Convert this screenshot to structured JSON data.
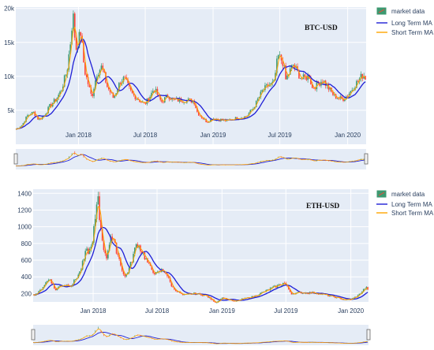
{
  "colors": {
    "plot_bg": "#e5ecf6",
    "grid": "#ffffff",
    "increasing": "#3d9970",
    "decreasing": "#ff4136",
    "long_ma": "#1f1fd6",
    "short_ma": "#ffa500",
    "range_bg": "#e5ecf6"
  },
  "legend": {
    "market": "market data",
    "long": "Long Term MA",
    "short": "Short Term MA"
  },
  "chart_data": [
    {
      "type": "candlestick",
      "title": "BTC-USD",
      "ylim": [
        0,
        20200
      ],
      "yticks": [
        5000,
        10000,
        15000,
        20000
      ],
      "ytick_labels": [
        "5k",
        "10k",
        "15k",
        "20k"
      ],
      "x_range": [
        "2017-07-15",
        "2020-02-20"
      ],
      "xticks": [
        "2018-01-01",
        "2018-07-01",
        "2019-01-01",
        "2019-07-01",
        "2020-01-01"
      ],
      "xtick_labels": [
        "Jan 2018",
        "Jul 2018",
        "Jan 2019",
        "Jul 2019",
        "Jan 2020"
      ],
      "price_series": [
        [
          "2017-07-15",
          2200
        ],
        [
          "2017-08-01",
          2800
        ],
        [
          "2017-08-15",
          4200
        ],
        [
          "2017-09-01",
          4700
        ],
        [
          "2017-09-15",
          3600
        ],
        [
          "2017-10-01",
          4300
        ],
        [
          "2017-10-15",
          5600
        ],
        [
          "2017-11-01",
          6600
        ],
        [
          "2017-11-15",
          7900
        ],
        [
          "2017-12-01",
          10900
        ],
        [
          "2017-12-10",
          15000
        ],
        [
          "2017-12-17",
          19300
        ],
        [
          "2017-12-25",
          14000
        ],
        [
          "2018-01-07",
          16500
        ],
        [
          "2018-01-17",
          11000
        ],
        [
          "2018-02-06",
          6900
        ],
        [
          "2018-02-20",
          10500
        ],
        [
          "2018-03-05",
          11400
        ],
        [
          "2018-03-20",
          8500
        ],
        [
          "2018-04-06",
          6800
        ],
        [
          "2018-04-25",
          9300
        ],
        [
          "2018-05-05",
          9700
        ],
        [
          "2018-05-25",
          7500
        ],
        [
          "2018-06-15",
          6500
        ],
        [
          "2018-06-29",
          5900
        ],
        [
          "2018-07-10",
          6700
        ],
        [
          "2018-07-25",
          8200
        ],
        [
          "2018-08-14",
          6200
        ],
        [
          "2018-09-01",
          7200
        ],
        [
          "2018-09-15",
          6500
        ],
        [
          "2018-10-15",
          6500
        ],
        [
          "2018-11-10",
          6400
        ],
        [
          "2018-11-20",
          4600
        ],
        [
          "2018-12-15",
          3300
        ],
        [
          "2019-01-01",
          3800
        ],
        [
          "2019-02-07",
          3450
        ],
        [
          "2019-03-01",
          3800
        ],
        [
          "2019-04-01",
          4100
        ],
        [
          "2019-04-20",
          5300
        ],
        [
          "2019-05-15",
          7900
        ],
        [
          "2019-05-30",
          8600
        ],
        [
          "2019-06-15",
          9000
        ],
        [
          "2019-06-26",
          13000
        ],
        [
          "2019-07-10",
          12100
        ],
        [
          "2019-07-17",
          9500
        ],
        [
          "2019-08-06",
          11700
        ],
        [
          "2019-08-29",
          9600
        ],
        [
          "2019-09-20",
          10100
        ],
        [
          "2019-09-26",
          8200
        ],
        [
          "2019-10-25",
          9500
        ],
        [
          "2019-11-25",
          7100
        ],
        [
          "2019-12-17",
          6600
        ],
        [
          "2020-01-01",
          7200
        ],
        [
          "2020-01-20",
          8700
        ],
        [
          "2020-02-12",
          10300
        ],
        [
          "2020-02-20",
          9700
        ]
      ]
    },
    {
      "type": "candlestick",
      "title": "ETH-USD",
      "ylim": [
        100,
        1450
      ],
      "yticks": [
        200,
        400,
        600,
        800,
        1000,
        1200,
        1400
      ],
      "ytick_labels": [
        "200",
        "400",
        "600",
        "800",
        "1000",
        "1200",
        "1400"
      ],
      "x_range": [
        "2017-07-15",
        "2020-02-20"
      ],
      "xticks": [
        "2018-01-01",
        "2018-07-01",
        "2019-01-01",
        "2019-07-01",
        "2020-01-01"
      ],
      "xtick_labels": [
        "Jan 2018",
        "Jul 2018",
        "Jan 2019",
        "Jul 2019",
        "Jan 2020"
      ],
      "price_series": [
        [
          "2017-07-15",
          180
        ],
        [
          "2017-08-01",
          220
        ],
        [
          "2017-08-20",
          330
        ],
        [
          "2017-09-01",
          380
        ],
        [
          "2017-09-15",
          240
        ],
        [
          "2017-10-01",
          300
        ],
        [
          "2017-11-01",
          300
        ],
        [
          "2017-11-25",
          460
        ],
        [
          "2017-12-12",
          700
        ],
        [
          "2017-12-25",
          720
        ],
        [
          "2018-01-10",
          1150
        ],
        [
          "2018-01-13",
          1400
        ],
        [
          "2018-01-20",
          1050
        ],
        [
          "2018-02-06",
          600
        ],
        [
          "2018-02-20",
          900
        ],
        [
          "2018-03-10",
          700
        ],
        [
          "2018-03-31",
          390
        ],
        [
          "2018-04-15",
          520
        ],
        [
          "2018-05-05",
          810
        ],
        [
          "2018-05-20",
          700
        ],
        [
          "2018-06-10",
          520
        ],
        [
          "2018-06-29",
          430
        ],
        [
          "2018-07-15",
          480
        ],
        [
          "2018-07-25",
          460
        ],
        [
          "2018-08-14",
          270
        ],
        [
          "2018-09-12",
          180
        ],
        [
          "2018-10-15",
          200
        ],
        [
          "2018-11-15",
          180
        ],
        [
          "2018-12-15",
          90
        ],
        [
          "2019-01-01",
          150
        ],
        [
          "2019-02-07",
          105
        ],
        [
          "2019-03-01",
          135
        ],
        [
          "2019-04-01",
          165
        ],
        [
          "2019-05-15",
          250
        ],
        [
          "2019-06-26",
          330
        ],
        [
          "2019-07-17",
          200
        ],
        [
          "2019-08-10",
          210
        ],
        [
          "2019-09-20",
          210
        ],
        [
          "2019-10-25",
          180
        ],
        [
          "2019-12-17",
          125
        ],
        [
          "2020-01-01",
          130
        ],
        [
          "2020-01-20",
          170
        ],
        [
          "2020-02-12",
          270
        ],
        [
          "2020-02-20",
          250
        ]
      ]
    }
  ]
}
